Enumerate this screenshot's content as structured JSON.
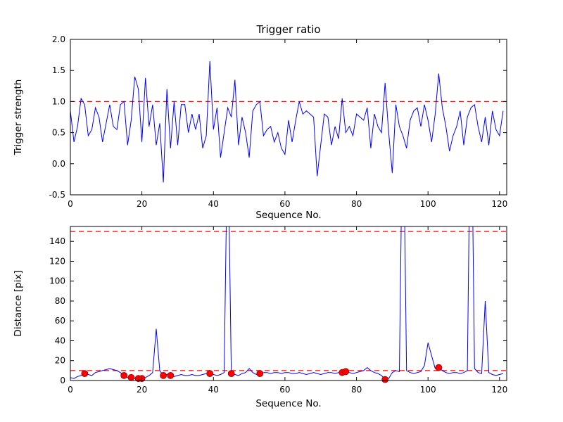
{
  "figure": {
    "background": "#ffffff",
    "line_color": "#0000ff",
    "threshold_color": "#ff0000",
    "marker_fill": "#ff0000",
    "marker_edge": "#990000",
    "axis_color": "#000000"
  },
  "chart_data": [
    {
      "type": "line",
      "title": "Trigger ratio",
      "xlabel": "Sequence No.",
      "ylabel": "Trigger strength",
      "xlim": [
        0,
        122
      ],
      "ylim": [
        -0.5,
        2.0
      ],
      "xticks": [
        0,
        20,
        40,
        60,
        80,
        100,
        120
      ],
      "xtick_labels": [
        "0",
        "20",
        "40",
        "60",
        "80",
        "100",
        "120"
      ],
      "yticks": [
        -0.5,
        0.0,
        0.5,
        1.0,
        1.5,
        2.0
      ],
      "ytick_labels": [
        "-0.5",
        "0.0",
        "0.5",
        "1.0",
        "1.5",
        "2.0"
      ],
      "threshold_y": [
        1.0
      ],
      "grid": false,
      "legend": null,
      "values": [
        0.85,
        0.35,
        0.6,
        1.05,
        0.95,
        0.45,
        0.55,
        0.9,
        0.75,
        0.35,
        0.65,
        0.95,
        0.6,
        0.55,
        0.95,
        1.0,
        0.3,
        0.7,
        1.4,
        1.2,
        0.35,
        1.38,
        0.6,
        0.95,
        0.3,
        0.65,
        -0.3,
        1.2,
        0.25,
        1.0,
        0.3,
        0.95,
        0.95,
        0.5,
        0.8,
        0.55,
        0.8,
        0.25,
        0.45,
        1.65,
        0.55,
        0.9,
        0.1,
        0.5,
        0.9,
        0.75,
        1.35,
        0.3,
        0.75,
        0.5,
        0.1,
        0.85,
        0.95,
        1.0,
        0.45,
        0.55,
        0.6,
        0.35,
        0.5,
        0.25,
        0.15,
        0.7,
        0.35,
        0.7,
        1.0,
        0.8,
        0.85,
        0.8,
        0.75,
        -0.2,
        0.3,
        0.8,
        0.75,
        0.3,
        0.6,
        0.4,
        1.05,
        0.5,
        0.6,
        0.45,
        0.8,
        0.75,
        0.7,
        0.9,
        0.25,
        0.8,
        0.6,
        0.5,
        1.3,
        0.5,
        -0.15,
        0.95,
        0.6,
        0.45,
        0.25,
        0.7,
        0.85,
        0.9,
        0.6,
        0.95,
        0.7,
        0.35,
        0.8,
        1.45,
        0.9,
        0.6,
        0.2,
        0.45,
        0.6,
        0.85,
        0.3,
        0.75,
        0.9,
        0.95,
        0.6,
        0.35,
        0.75,
        0.3,
        0.85,
        0.55,
        0.45,
        0.85
      ]
    },
    {
      "type": "line",
      "title": "",
      "xlabel": "Sequence No.",
      "ylabel": "Distance [pix]",
      "xlim": [
        0,
        122
      ],
      "ylim": [
        0,
        155
      ],
      "xticks": [
        0,
        20,
        40,
        60,
        80,
        100,
        120
      ],
      "xtick_labels": [
        "0",
        "20",
        "40",
        "60",
        "80",
        "100",
        "120"
      ],
      "yticks": [
        0,
        20,
        40,
        60,
        80,
        100,
        120,
        140
      ],
      "ytick_labels": [
        "0",
        "20",
        "40",
        "60",
        "80",
        "100",
        "120",
        "140"
      ],
      "threshold_y": [
        150,
        10
      ],
      "grid": false,
      "legend": null,
      "values": [
        3,
        2,
        4,
        5,
        7,
        6,
        5,
        8,
        9,
        10,
        11,
        12,
        11,
        10,
        8,
        5,
        3,
        3,
        2,
        2,
        2,
        3,
        5,
        8,
        52,
        10,
        5,
        6,
        5,
        4,
        5,
        6,
        5,
        5,
        6,
        5,
        5,
        6,
        7,
        7,
        6,
        5,
        6,
        8,
        260,
        7,
        6,
        5,
        7,
        8,
        12,
        8,
        6,
        7,
        8,
        8,
        7,
        8,
        8,
        7,
        8,
        8,
        7,
        7,
        8,
        7,
        6,
        7,
        8,
        7,
        6,
        7,
        8,
        8,
        7,
        8,
        8,
        9,
        8,
        7,
        8,
        9,
        10,
        13,
        10,
        8,
        7,
        5,
        1,
        2,
        8,
        10,
        9,
        300,
        10,
        8,
        7,
        8,
        9,
        15,
        38,
        25,
        12,
        13,
        10,
        8,
        7,
        8,
        8,
        7,
        8,
        10,
        320,
        12,
        8,
        7,
        80,
        8,
        6,
        5,
        6,
        7
      ],
      "markers": {
        "x": [
          4,
          15,
          17,
          19,
          20,
          26,
          28,
          39,
          45,
          53,
          76,
          77,
          88,
          103
        ],
        "y": [
          7,
          5,
          3,
          2,
          2,
          5,
          5,
          7,
          7,
          7,
          8,
          9,
          1,
          13
        ]
      }
    }
  ]
}
